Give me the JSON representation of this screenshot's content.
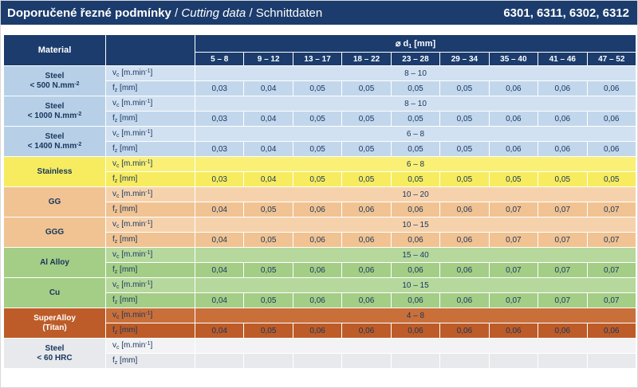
{
  "title_bar": {
    "title_cz": "Doporučené řezné podmínky",
    "sep": " / ",
    "title_en": "Cutting data",
    "title_de": "Schnittdaten",
    "codes": "6301, 6311, 6302, 6312"
  },
  "table": {
    "material_header": "Material",
    "diameter": {
      "symbol": "⌀ ",
      "letter": "d",
      "sub": "1",
      "unit": " [mm]"
    },
    "columns": [
      "5 – 8",
      "9 – 12",
      "13 – 17",
      "18 – 22",
      "23 – 28",
      "29 – 34",
      "35 – 40",
      "41 – 46",
      "47 – 52"
    ],
    "params": {
      "vc": {
        "letter": "v",
        "sub": "c",
        "unit": " [m.min",
        "sup": "-1",
        "close": "]"
      },
      "fz": {
        "letter": "f",
        "sub": "z",
        "unit": " [mm]"
      }
    },
    "materials": [
      {
        "name": "Steel",
        "sub": "< 500 N.mm",
        "sub_sup": "-2",
        "theme": "steel",
        "vc": "8 – 10",
        "fz": [
          "0,03",
          "0,04",
          "0,05",
          "0,05",
          "0,05",
          "0,05",
          "0,06",
          "0,06",
          "0,06"
        ]
      },
      {
        "name": "Steel",
        "sub": "< 1000 N.mm",
        "sub_sup": "-2",
        "theme": "steel",
        "vc": "8 – 10",
        "fz": [
          "0,03",
          "0,04",
          "0,05",
          "0,05",
          "0,05",
          "0,05",
          "0,06",
          "0,06",
          "0,06"
        ]
      },
      {
        "name": "Steel",
        "sub": "< 1400 N.mm",
        "sub_sup": "-2",
        "theme": "steel",
        "vc": "6 – 8",
        "fz": [
          "0,03",
          "0,04",
          "0,05",
          "0,05",
          "0,05",
          "0,05",
          "0,06",
          "0,06",
          "0,06"
        ]
      },
      {
        "name": "Stainless",
        "theme": "stainless",
        "vc": "6 – 8",
        "fz": [
          "0,03",
          "0,04",
          "0,05",
          "0,05",
          "0,05",
          "0,05",
          "0,05",
          "0,05",
          "0,05"
        ]
      },
      {
        "name": "GG",
        "theme": "gg",
        "vc": "10 – 20",
        "fz": [
          "0,04",
          "0,05",
          "0,06",
          "0,06",
          "0,06",
          "0,06",
          "0,07",
          "0,07",
          "0,07"
        ]
      },
      {
        "name": "GGG",
        "theme": "gg",
        "vc": "10 – 15",
        "fz": [
          "0,04",
          "0,05",
          "0,06",
          "0,06",
          "0,06",
          "0,06",
          "0,07",
          "0,07",
          "0,07"
        ]
      },
      {
        "name": "Al Alloy",
        "theme": "green",
        "vc": "15 – 40",
        "fz": [
          "0,04",
          "0,05",
          "0,06",
          "0,06",
          "0,06",
          "0,06",
          "0,07",
          "0,07",
          "0,07"
        ]
      },
      {
        "name": "Cu",
        "theme": "green",
        "vc": "10 – 15",
        "fz": [
          "0,04",
          "0,05",
          "0,06",
          "0,06",
          "0,06",
          "0,06",
          "0,07",
          "0,07",
          "0,07"
        ]
      },
      {
        "name": "SuperAlloy",
        "sub": "(Titan)",
        "theme": "super",
        "vc": "4 – 8",
        "fz": [
          "0,04",
          "0,05",
          "0,06",
          "0,06",
          "0,06",
          "0,06",
          "0,06",
          "0,06",
          "0,06"
        ]
      },
      {
        "name": "Steel",
        "sub": "< 60 HRC",
        "theme": "hrc",
        "vc": "",
        "fz": [
          "",
          "",
          "",
          "",
          "",
          "",
          "",
          "",
          ""
        ]
      }
    ]
  },
  "colors": {
    "navy": "#1b3c6d",
    "navy_text": "#17365d",
    "themes": {
      "steel": {
        "mat": "#b7d0e8",
        "vc": "#d2e1f1",
        "fz": "#c2d7ec",
        "text": "#17365d"
      },
      "stainless": {
        "mat": "#f7ec5f",
        "vc": "#f9f075",
        "fz": "#f7ec5f",
        "text": "#17365d"
      },
      "gg": {
        "mat": "#f1c392",
        "vc": "#f6d2ac",
        "fz": "#f1c392",
        "text": "#17365d"
      },
      "green": {
        "mat": "#a4cd86",
        "vc": "#b6d89d",
        "fz": "#a4cd86",
        "text": "#17365d"
      },
      "super": {
        "mat": "#bd5c28",
        "vc": "#c96f3a",
        "fz": "#bd5c28",
        "text": "#17365d",
        "name_text": "#ffffff"
      },
      "hrc": {
        "mat": "#e8e9ec",
        "vc": "#f3f3f5",
        "fz": "#e8e9ec",
        "text": "#17365d"
      }
    }
  }
}
